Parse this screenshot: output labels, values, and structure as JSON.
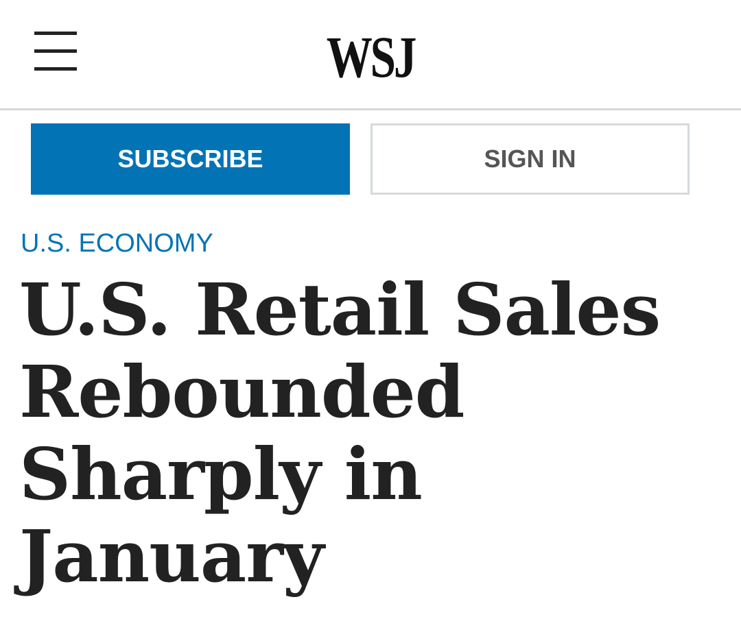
{
  "header": {
    "logo": "WSJ",
    "subscribe": "SUBSCRIBE",
    "sign_in": "SIGN IN"
  },
  "article": {
    "section": "U.S. ECONOMY",
    "title": "U.S. Retail Sales Rebounded Sharply in January"
  }
}
